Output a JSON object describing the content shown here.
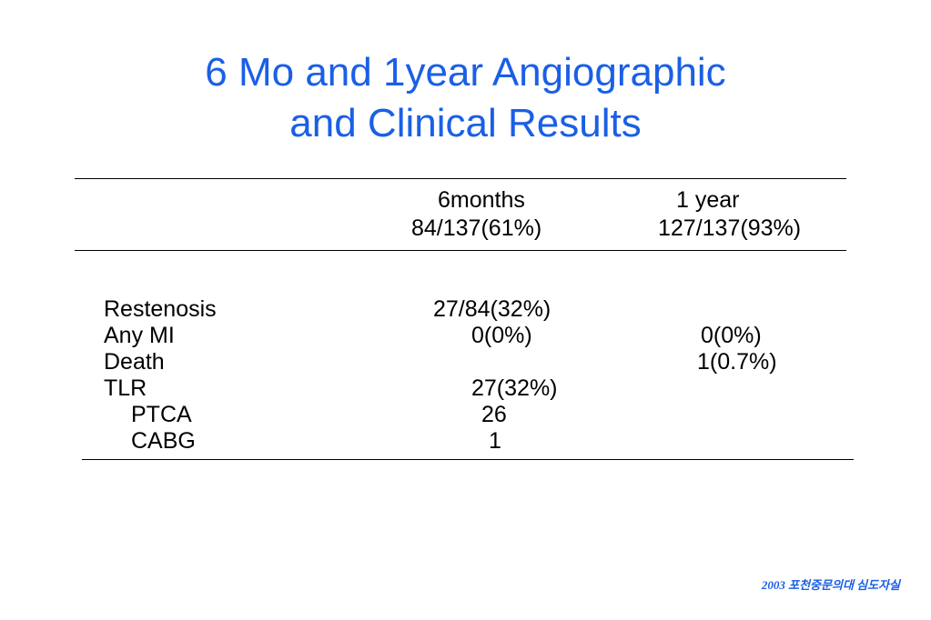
{
  "slide": {
    "title_line1": "6 Mo and 1year Angiographic",
    "title_line2": "and Clinical Results",
    "footer": "2003 포천중문의대 심도자실"
  },
  "table": {
    "columns": [
      {
        "label": "6months",
        "sub": "84/137(61%)"
      },
      {
        "label": "1 year",
        "sub": "127/137(93%)"
      }
    ],
    "rows": [
      {
        "label": "Restenosis",
        "six_months": "27/84(32%)",
        "one_year": ""
      },
      {
        "label": "Any MI",
        "six_months": "0(0%)",
        "one_year": "0(0%)"
      },
      {
        "label": "Death",
        "six_months": "",
        "one_year": "1(0.7%)"
      },
      {
        "label": "TLR",
        "six_months": "27(32%)",
        "one_year": ""
      },
      {
        "label": "PTCA",
        "six_months": "26",
        "one_year": ""
      },
      {
        "label": "CABG",
        "six_months": "1",
        "one_year": ""
      }
    ]
  }
}
